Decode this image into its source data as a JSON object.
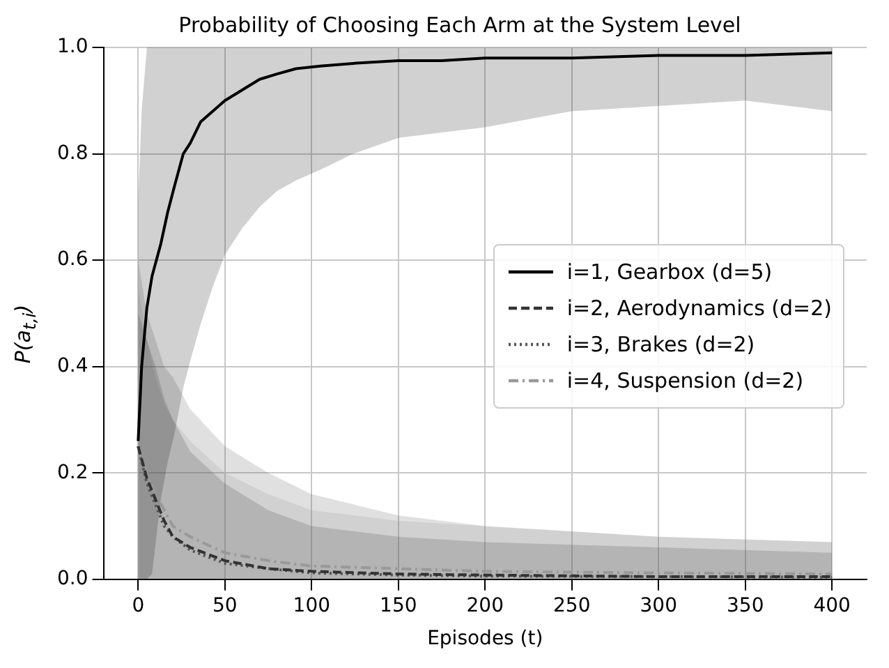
{
  "chart_data": {
    "type": "line",
    "title": "Probability of Choosing Each Arm at the System Level",
    "xlabel": "Episodes (t)",
    "ylabel": "P(a$_{t,i}$)",
    "xlim": [
      -20,
      420
    ],
    "xticks": [
      0,
      50,
      100,
      150,
      200,
      250,
      300,
      350,
      400
    ],
    "ylim": [
      0,
      1
    ],
    "yticks": [
      {
        "value": 0,
        "label": "0.0"
      },
      {
        "value": 0.2,
        "label": "0.2"
      },
      {
        "value": 0.4,
        "label": "0.4"
      },
      {
        "value": 0.6,
        "label": "0.6"
      },
      {
        "value": 0.8,
        "label": "0.8"
      },
      {
        "value": 1,
        "label": "1.0"
      }
    ],
    "grid": true,
    "legend": "right",
    "marker": "none",
    "series": [
      {
        "name": "i=1, Gearbox (d=5)",
        "color": "#000000",
        "line_style": "solid",
        "x": [
          0,
          2,
          5,
          8,
          13,
          17,
          21,
          26,
          30,
          36,
          43,
          50,
          60,
          70,
          80,
          91,
          105,
          124,
          150,
          175,
          200,
          250,
          300,
          350,
          400
        ],
        "values": [
          0.26,
          0.4,
          0.51,
          0.57,
          0.63,
          0.69,
          0.74,
          0.8,
          0.82,
          0.86,
          0.88,
          0.9,
          0.92,
          0.94,
          0.95,
          0.96,
          0.965,
          0.97,
          0.975,
          0.975,
          0.98,
          0.98,
          0.985,
          0.985,
          0.99
        ],
        "lower": [
          0,
          0,
          0,
          0.01,
          0.15,
          0.22,
          0.275,
          0.36,
          0.41,
          0.48,
          0.55,
          0.61,
          0.66,
          0.7,
          0.73,
          0.75,
          0.77,
          0.8,
          0.83,
          0.84,
          0.85,
          0.88,
          0.89,
          0.9,
          0.88
        ],
        "upper": [
          0.71,
          0.88,
          1,
          1,
          1,
          1,
          1,
          1,
          1,
          1,
          1,
          1,
          1,
          1,
          1,
          1,
          1,
          1,
          1,
          1,
          1,
          1,
          1,
          1,
          1
        ]
      },
      {
        "name": "i=2, Aerodynamics (d=2)",
        "color": "#333333",
        "line_style": "dashed",
        "x": [
          0,
          5,
          10,
          15,
          20,
          30,
          50,
          75,
          100,
          150,
          200,
          300,
          400
        ],
        "values": [
          0.25,
          0.19,
          0.15,
          0.11,
          0.08,
          0.06,
          0.035,
          0.02,
          0.015,
          0.01,
          0.008,
          0.005,
          0.005
        ],
        "lower": [
          0,
          0,
          0,
          0,
          0,
          0,
          0,
          0,
          0,
          0,
          0,
          0,
          0
        ],
        "upper": [
          0.5,
          0.45,
          0.4,
          0.34,
          0.3,
          0.24,
          0.18,
          0.13,
          0.1,
          0.08,
          0.07,
          0.06,
          0.05
        ]
      },
      {
        "name": "i=3, Brakes (d=2)",
        "color": "#555555",
        "line_style": "dotted",
        "x": [
          0,
          5,
          10,
          15,
          20,
          30,
          50,
          75,
          100,
          150,
          200,
          300,
          400
        ],
        "values": [
          0.25,
          0.18,
          0.14,
          0.1,
          0.08,
          0.055,
          0.03,
          0.02,
          0.012,
          0.008,
          0.006,
          0.005,
          0.004
        ],
        "lower": [
          0,
          0,
          0,
          0,
          0,
          0,
          0,
          0,
          0,
          0,
          0,
          0,
          0
        ],
        "upper": [
          0.6,
          0.5,
          0.45,
          0.4,
          0.38,
          0.32,
          0.25,
          0.2,
          0.16,
          0.12,
          0.1,
          0.08,
          0.07
        ]
      },
      {
        "name": "i=4, Suspension (d=2)",
        "color": "#999999",
        "line_style": "dashdot",
        "x": [
          0,
          5,
          10,
          15,
          20,
          30,
          50,
          75,
          100,
          150,
          200,
          300,
          400
        ],
        "values": [
          0.25,
          0.2,
          0.16,
          0.13,
          0.1,
          0.08,
          0.05,
          0.035,
          0.025,
          0.02,
          0.015,
          0.012,
          0.01
        ],
        "lower": [
          0,
          0,
          0,
          0,
          0,
          0,
          0,
          0,
          0,
          0,
          0,
          0,
          0
        ],
        "upper": [
          0.55,
          0.45,
          0.38,
          0.33,
          0.3,
          0.26,
          0.2,
          0.16,
          0.13,
          0.11,
          0.1,
          0.08,
          0.07
        ]
      }
    ]
  }
}
